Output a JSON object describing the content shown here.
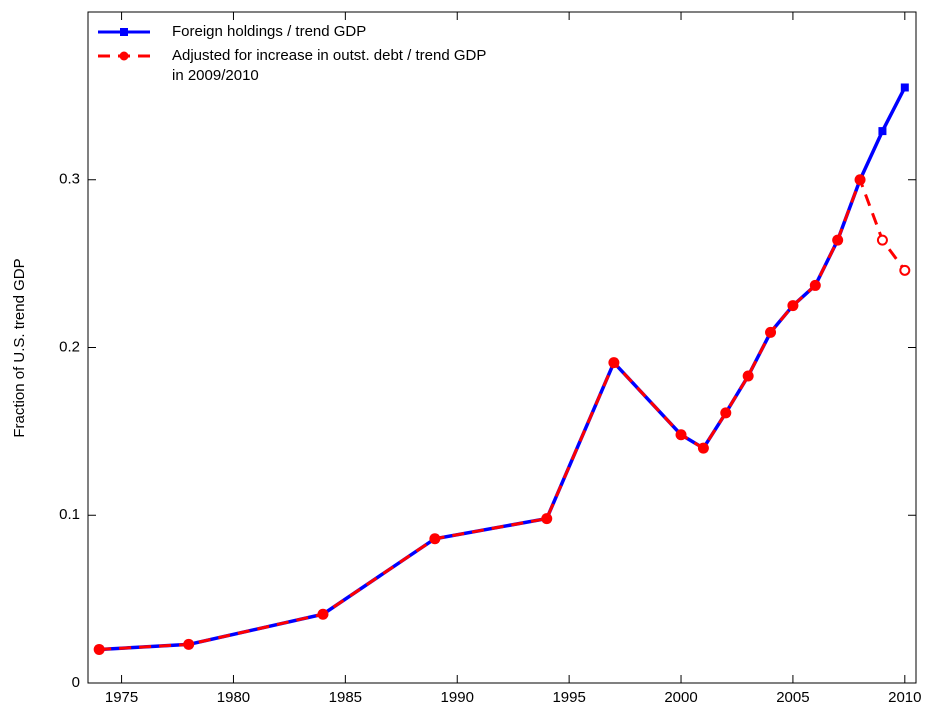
{
  "chart_data": {
    "type": "line",
    "y_label": "Fraction of U.S. trend GDP",
    "x": [
      1974,
      1978,
      1984,
      1989,
      1994,
      1997,
      2000,
      2001,
      2002,
      2003,
      2004,
      2005,
      2006,
      2007,
      2008,
      2009,
      2010
    ],
    "series": [
      {
        "name": "Foreign holdings / trend GDP",
        "color": "#0000ff",
        "marker": "square",
        "dashed": false,
        "values": [
          0.02,
          0.023,
          0.041,
          0.086,
          0.098,
          0.191,
          0.148,
          0.14,
          0.161,
          0.183,
          0.209,
          0.225,
          0.237,
          0.264,
          0.3,
          0.329,
          0.355
        ]
      },
      {
        "name": "Adjusted for increase in outst. debt / trend GDP\nin 2009/2010",
        "color": "#ff0000",
        "marker": "circle",
        "dashed": true,
        "values": [
          0.02,
          0.023,
          0.041,
          0.086,
          0.098,
          0.191,
          0.148,
          0.14,
          0.161,
          0.183,
          0.209,
          0.225,
          0.237,
          0.264,
          0.3,
          0.264,
          0.246
        ]
      }
    ],
    "xlim": [
      1973.5,
      2010.5
    ],
    "xticks": [
      1975,
      1980,
      1985,
      1990,
      1995,
      2000,
      2005,
      2010
    ],
    "ylim": [
      0,
      0.4
    ],
    "yticks": [
      0,
      0.1,
      0.2,
      0.3
    ],
    "legend": "upper left",
    "grid": false
  }
}
